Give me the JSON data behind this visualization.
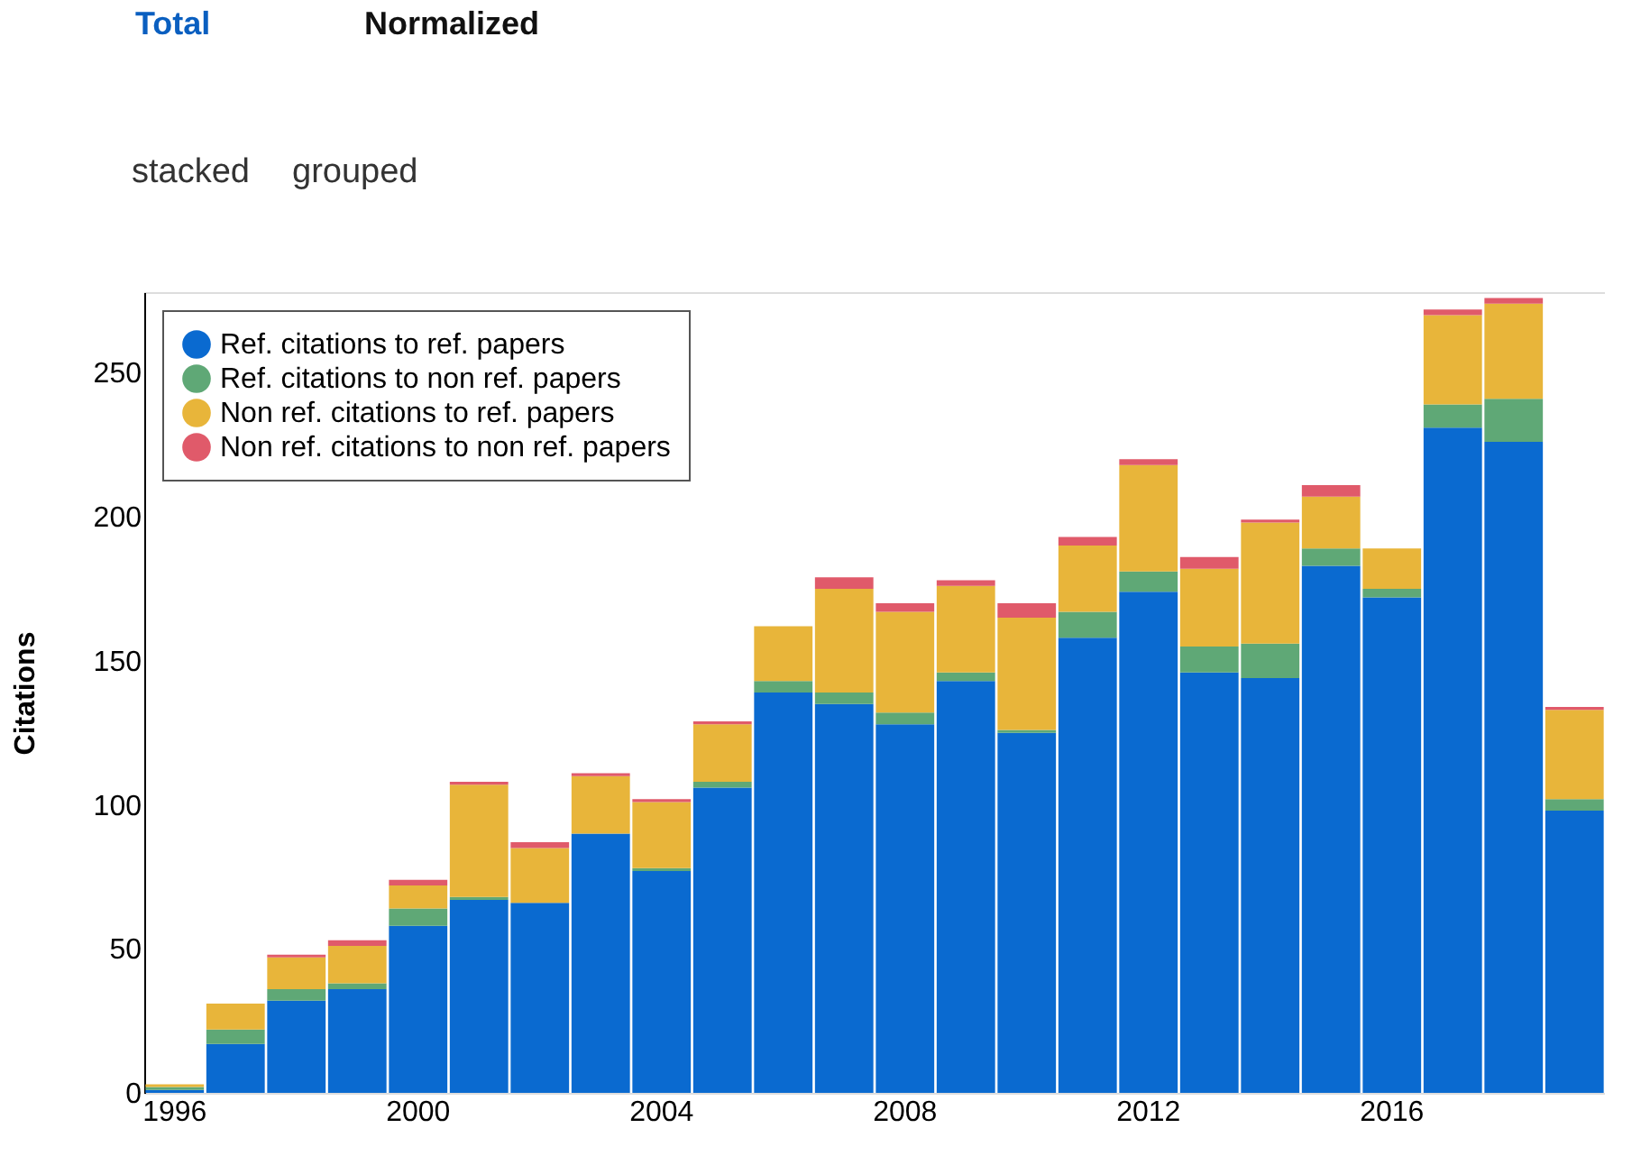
{
  "chart_data": {
    "type": "bar",
    "stacked": true,
    "ylabel": "Citations",
    "annotations": [
      "Total",
      "Normalized",
      "stacked",
      "grouped"
    ],
    "categories": [
      "1996",
      null,
      null,
      null,
      "2000",
      null,
      null,
      null,
      "2004",
      null,
      null,
      null,
      "2008",
      null,
      null,
      null,
      "2012",
      null,
      null,
      null,
      "2016",
      null,
      null,
      null
    ],
    "series": [
      {
        "name": "Ref. citations to ref. papers",
        "color": "#0a6ad0",
        "values": [
          1,
          17,
          32,
          36,
          58,
          67,
          66,
          90,
          77,
          106,
          139,
          135,
          128,
          143,
          125,
          158,
          174,
          146,
          144,
          183,
          172,
          231,
          226,
          98
        ]
      },
      {
        "name": "Ref. citations to non ref. papers",
        "color": "#5fa876",
        "values": [
          1,
          5,
          4,
          2,
          6,
          1,
          0,
          0,
          1,
          2,
          4,
          4,
          4,
          3,
          1,
          9,
          7,
          9,
          12,
          6,
          3,
          8,
          15,
          4
        ]
      },
      {
        "name": "Non ref. citations to ref. papers",
        "color": "#e8b53a",
        "values": [
          1,
          9,
          11,
          13,
          8,
          39,
          19,
          20,
          23,
          20,
          19,
          36,
          35,
          30,
          39,
          23,
          37,
          27,
          42,
          18,
          14,
          31,
          33,
          31
        ]
      },
      {
        "name": "Non ref. citations to non ref. papers",
        "color": "#e05a6a",
        "values": [
          0,
          0,
          1,
          2,
          2,
          1,
          2,
          1,
          1,
          1,
          0,
          4,
          3,
          2,
          5,
          3,
          2,
          4,
          1,
          4,
          0,
          2,
          2,
          1
        ]
      }
    ],
    "ylim": [
      0,
      278
    ],
    "yticks": [
      0,
      50,
      100,
      150,
      200,
      250
    ],
    "legend": "top left"
  }
}
